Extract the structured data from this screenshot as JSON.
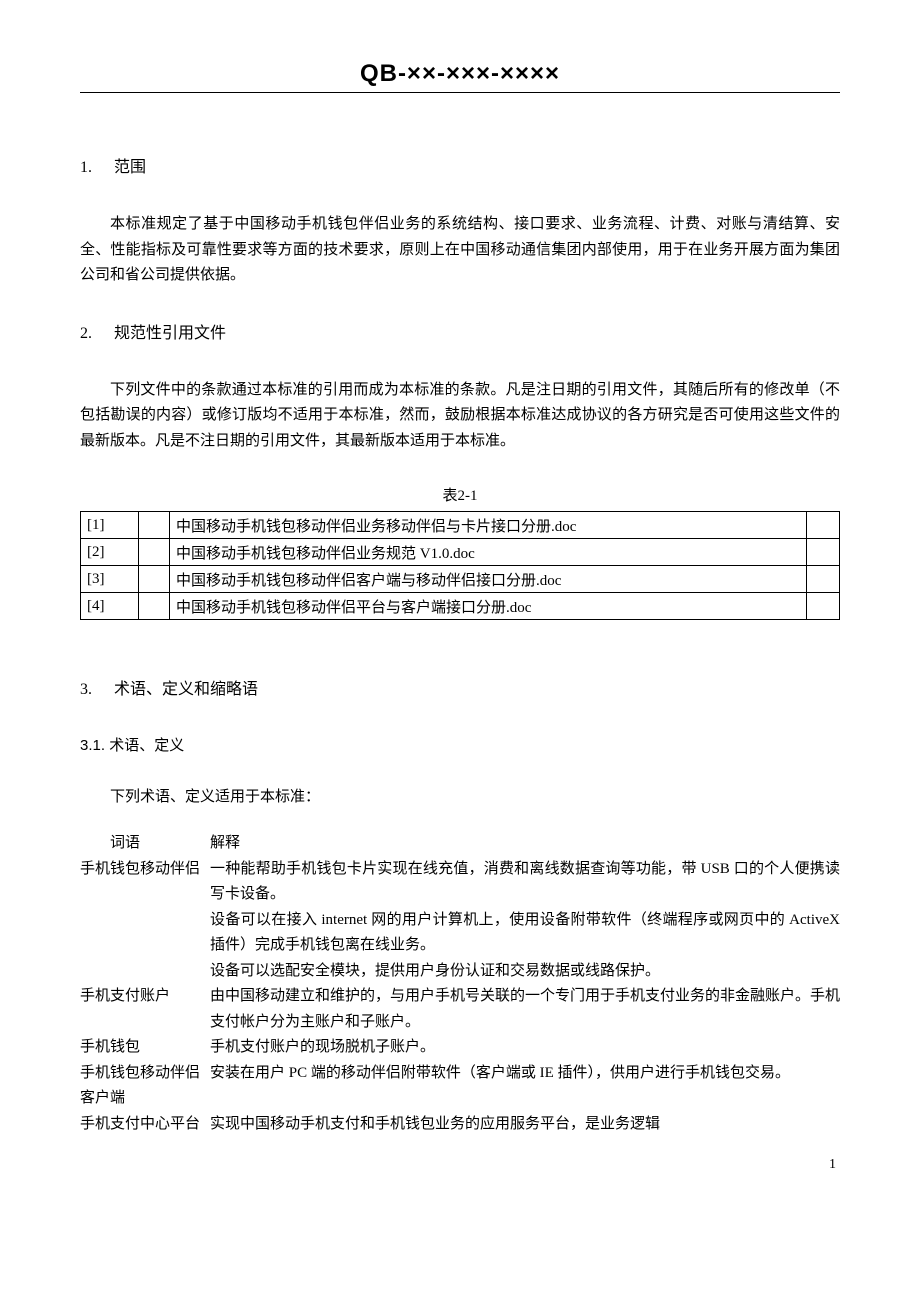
{
  "header_code": "QB-××-×××-××××",
  "page_number": "1",
  "sections": {
    "s1": {
      "num": "1.",
      "title": "范围",
      "body": "本标准规定了基于中国移动手机钱包伴侣业务的系统结构、接口要求、业务流程、计费、对账与清结算、安全、性能指标及可靠性要求等方面的技术要求，原则上在中国移动通信集团内部使用，用于在业务开展方面为集团公司和省公司提供依据。"
    },
    "s2": {
      "num": "2.",
      "title": "规范性引用文件",
      "body": "下列文件中的条款通过本标准的引用而成为本标准的条款。凡是注日期的引用文件，其随后所有的修改单（不包括勘误的内容）或修订版均不适用于本标准，然而，鼓励根据本标准达成协议的各方研究是否可使用这些文件的最新版本。凡是不注日期的引用文件，其最新版本适用于本标准。",
      "table_caption": "表2-1",
      "refs": [
        {
          "idx": "[1]",
          "title": "中国移动手机钱包移动伴侣业务移动伴侣与卡片接口分册.doc"
        },
        {
          "idx": "[2]",
          "title": "中国移动手机钱包移动伴侣业务规范 V1.0.doc"
        },
        {
          "idx": "[3]",
          "title": "中国移动手机钱包移动伴侣客户端与移动伴侣接口分册.doc"
        },
        {
          "idx": "[4]",
          "title": "中国移动手机钱包移动伴侣平台与客户端接口分册.doc"
        }
      ]
    },
    "s3": {
      "num": "3.",
      "title": "术语、定义和缩略语"
    },
    "s3_1": {
      "num": "3.1.",
      "title": "术语、定义",
      "intro": "下列术语、定义适用于本标准：",
      "th_term": "词语",
      "th_desc": "解释",
      "terms": [
        {
          "t": "手机钱包移动伴侣",
          "d": "一种能帮助手机钱包卡片实现在线充值，消费和离线数据查询等功能，带 USB 口的个人便携读写卡设备。"
        },
        {
          "t": "",
          "d": "设备可以在接入 internet 网的用户计算机上，使用设备附带软件（终端程序或网页中的 ActiveX 插件）完成手机钱包离在线业务。"
        },
        {
          "t": "",
          "d": "设备可以选配安全模块，提供用户身份认证和交易数据或线路保护。"
        },
        {
          "t": "手机支付账户",
          "d": "由中国移动建立和维护的，与用户手机号关联的一个专门用于手机支付业务的非金融账户。手机支付帐户分为主账户和子账户。"
        },
        {
          "t": "手机钱包",
          "d": "手机支付账户的现场脱机子账户。"
        },
        {
          "t": "手机钱包移动伴侣客户端",
          "d": "安装在用户 PC 端的移动伴侣附带软件（客户端或 IE 插件），供用户进行手机钱包交易。"
        },
        {
          "t": "手机支付中心平台",
          "d": "实现中国移动手机支付和手机钱包业务的应用服务平台，是业务逻辑"
        }
      ]
    }
  }
}
